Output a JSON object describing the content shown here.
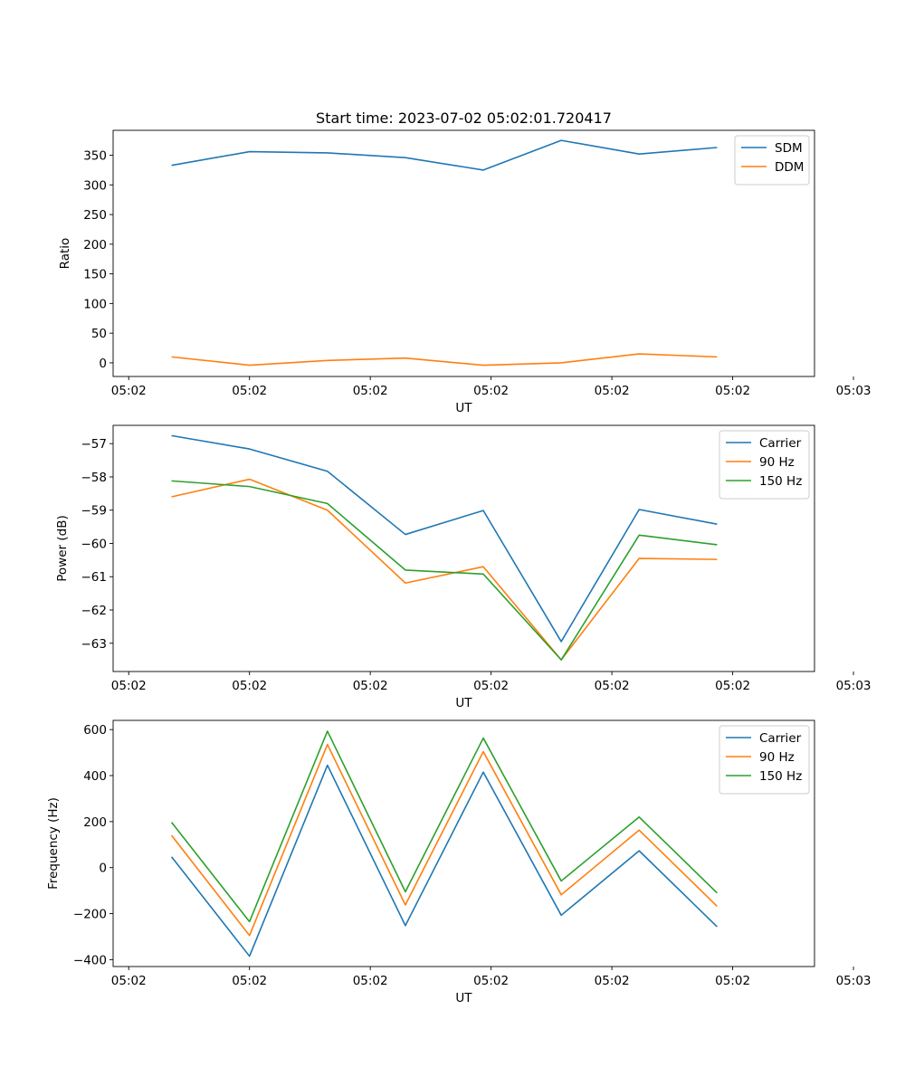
{
  "title": "Start time: 2023-07-02 05:02:01.720417",
  "colors": {
    "blue": "#1f77b4",
    "orange": "#ff7f0e",
    "green": "#2ca02c"
  },
  "chart_data": [
    {
      "type": "line",
      "title": "Start time: 2023-07-02 05:02:01.720417",
      "xlabel": "UT",
      "ylabel": "Ratio",
      "x": [
        1,
        2,
        3,
        4,
        5,
        6,
        7,
        8
      ],
      "xlim": [
        0.25,
        9.25
      ],
      "ylim": [
        -23,
        392
      ],
      "xticks": [
        0.45,
        2.0,
        3.55,
        5.1,
        6.65,
        8.2,
        9.75
      ],
      "xtick_labels": [
        "05:02",
        "05:02",
        "05:02",
        "05:02",
        "05:02",
        "05:02",
        "05:03"
      ],
      "yticks": [
        0,
        50,
        100,
        150,
        200,
        250,
        300,
        350
      ],
      "ytick_labels": [
        "0",
        "50",
        "100",
        "150",
        "200",
        "250",
        "300",
        "350"
      ],
      "legend": "top-right",
      "series": [
        {
          "name": "SDM",
          "color": "#1f77b4",
          "values": [
            333,
            356,
            354,
            346,
            325,
            375,
            352,
            363
          ]
        },
        {
          "name": "DDM",
          "color": "#ff7f0e",
          "values": [
            10,
            -4,
            4,
            8,
            -4,
            0,
            15,
            10
          ]
        }
      ]
    },
    {
      "type": "line",
      "title": "",
      "xlabel": "UT",
      "ylabel": "Power (dB)",
      "x": [
        1,
        2,
        3,
        4,
        5,
        6,
        7,
        8
      ],
      "xlim": [
        0.25,
        9.25
      ],
      "ylim": [
        -63.85,
        -56.45
      ],
      "xticks": [
        0.45,
        2.0,
        3.55,
        5.1,
        6.65,
        8.2,
        9.75
      ],
      "xtick_labels": [
        "05:02",
        "05:02",
        "05:02",
        "05:02",
        "05:02",
        "05:02",
        "05:03"
      ],
      "yticks": [
        -63,
        -62,
        -61,
        -60,
        -59,
        -58,
        -57
      ],
      "ytick_labels": [
        "−63",
        "−62",
        "−61",
        "−60",
        "−59",
        "−58",
        "−57"
      ],
      "legend": "top-right",
      "series": [
        {
          "name": "Carrier",
          "color": "#1f77b4",
          "values": [
            -56.76,
            -57.16,
            -57.83,
            -59.73,
            -59.01,
            -62.95,
            -58.98,
            -59.42
          ]
        },
        {
          "name": "90 Hz",
          "color": "#ff7f0e",
          "values": [
            -58.6,
            -58.07,
            -59.0,
            -61.19,
            -60.7,
            -63.5,
            -60.45,
            -60.48
          ]
        },
        {
          "name": "150 Hz",
          "color": "#2ca02c",
          "values": [
            -58.12,
            -58.29,
            -58.8,
            -60.8,
            -60.92,
            -63.5,
            -59.75,
            -60.04
          ]
        }
      ]
    },
    {
      "type": "line",
      "title": "",
      "xlabel": "UT",
      "ylabel": "Frequency (Hz)",
      "x": [
        1,
        2,
        3,
        4,
        5,
        6,
        7,
        8
      ],
      "xlim": [
        0.25,
        9.25
      ],
      "ylim": [
        -430,
        640
      ],
      "xticks": [
        0.45,
        2.0,
        3.55,
        5.1,
        6.65,
        8.2,
        9.75
      ],
      "xtick_labels": [
        "05:02",
        "05:02",
        "05:02",
        "05:02",
        "05:02",
        "05:02",
        "05:03"
      ],
      "yticks": [
        -400,
        -200,
        0,
        200,
        400,
        600
      ],
      "ytick_labels": [
        "−400",
        "−200",
        "0",
        "200",
        "400",
        "600"
      ],
      "legend": "top-right",
      "series": [
        {
          "name": "Carrier",
          "color": "#1f77b4",
          "values": [
            47,
            -385,
            445,
            -252,
            415,
            -207,
            73,
            -257
          ]
        },
        {
          "name": "90 Hz",
          "color": "#ff7f0e",
          "values": [
            140,
            -295,
            535,
            -162,
            504,
            -118,
            163,
            -168
          ]
        },
        {
          "name": "150 Hz",
          "color": "#2ca02c",
          "values": [
            197,
            -235,
            593,
            -105,
            563,
            -58,
            220,
            -110
          ]
        }
      ]
    }
  ]
}
